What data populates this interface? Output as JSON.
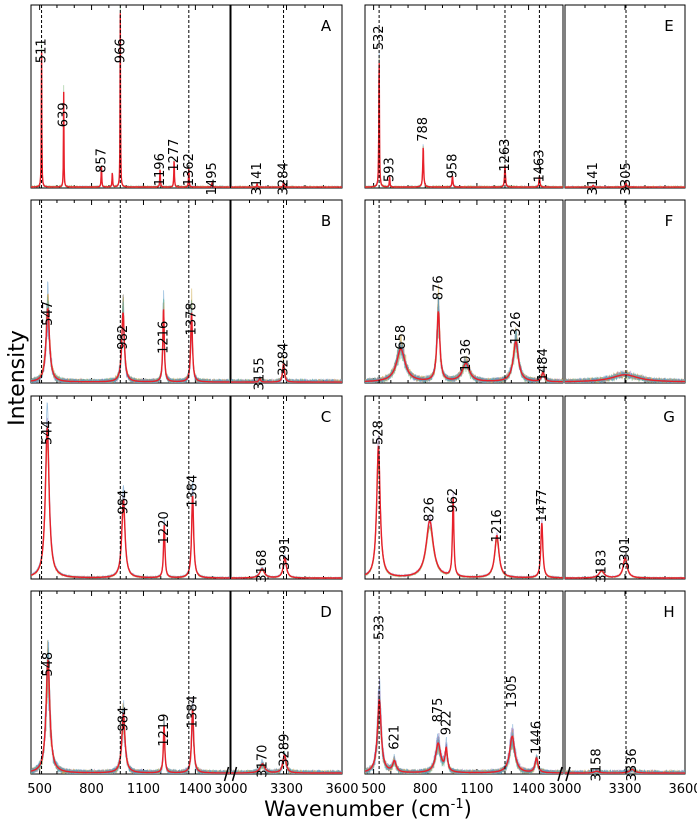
{
  "chart_data": {
    "type": "line",
    "description_free": true,
    "ylabel": "Intensity",
    "xlabel": "Wavenumber (cm",
    "xlabel_sup": "-1",
    "xlabel_end": ")",
    "x_ticks_low": [
      500,
      800,
      1100,
      1400
    ],
    "x_ticks_high": [
      3000,
      3300,
      3600
    ],
    "x_range_low": [
      450,
      1600
    ],
    "x_range_high": [
      3000,
      3600
    ],
    "dashed_lines_left": [
      511,
      966,
      1362,
      3284
    ],
    "dashed_lines_right": [
      532,
      1263,
      1463,
      3305
    ],
    "panels": [
      {
        "label": "A",
        "col": 0,
        "row": 0,
        "style": "sparse",
        "peaks": [
          {
            "x": 511,
            "h": 0.82,
            "w": 1.5,
            "label": "511",
            "ly": 0.25
          },
          {
            "x": 639,
            "h": 0.52,
            "w": 1.5,
            "label": "639",
            "ly": 0.6
          },
          {
            "x": 857,
            "h": 0.12,
            "w": 2,
            "label": "857",
            "ly": 0.85
          },
          {
            "x": 920,
            "h": 0.08,
            "w": 2,
            "label": "",
            "ly": 0
          },
          {
            "x": 966,
            "h": 0.95,
            "w": 1.5,
            "label": "966",
            "ly": 0.25
          },
          {
            "x": 1196,
            "h": 0.1,
            "w": 2,
            "label": "1196",
            "ly": 0.9
          },
          {
            "x": 1277,
            "h": 0.15,
            "w": 2,
            "label": "1277",
            "ly": 0.82
          },
          {
            "x": 1362,
            "h": 0.1,
            "w": 2,
            "label": "1362",
            "ly": 0.9
          },
          {
            "x": 1495,
            "h": 0.02,
            "w": 2,
            "label": "1495",
            "ly": 0.95
          },
          {
            "x": 3141,
            "h": 0.02,
            "w": 2,
            "label": "3141",
            "ly": 0.95
          },
          {
            "x": 3284,
            "h": 0.03,
            "w": 2,
            "label": "3284",
            "ly": 0.95
          }
        ]
      },
      {
        "label": "B",
        "col": 0,
        "row": 1,
        "style": "noisy",
        "peaks": [
          {
            "x": 547,
            "h": 0.4,
            "w": 12,
            "label": "547",
            "ly": 0.62
          },
          {
            "x": 982,
            "h": 0.38,
            "w": 9,
            "label": "982",
            "ly": 0.75
          },
          {
            "x": 1216,
            "h": 0.4,
            "w": 5,
            "label": "1216",
            "ly": 0.75
          },
          {
            "x": 1378,
            "h": 0.38,
            "w": 6,
            "label": "1378",
            "ly": 0.65
          },
          {
            "x": 3155,
            "h": 0.02,
            "w": 5,
            "label": "3155",
            "ly": 0.95
          },
          {
            "x": 3284,
            "h": 0.1,
            "w": 6,
            "label": "3284",
            "ly": 0.87
          }
        ]
      },
      {
        "label": "C",
        "col": 0,
        "row": 2,
        "style": "smooth",
        "peaks": [
          {
            "x": 544,
            "h": 0.82,
            "w": 13,
            "label": "544",
            "ly": 0.2
          },
          {
            "x": 984,
            "h": 0.43,
            "w": 11,
            "label": "984",
            "ly": 0.58
          },
          {
            "x": 1220,
            "h": 0.29,
            "w": 5,
            "label": "1220",
            "ly": 0.72
          },
          {
            "x": 1384,
            "h": 0.45,
            "w": 7,
            "label": "1384",
            "ly": 0.52
          },
          {
            "x": 3168,
            "h": 0.05,
            "w": 15,
            "label": "3168",
            "ly": 0.93
          },
          {
            "x": 3291,
            "h": 0.11,
            "w": 10,
            "label": "3291",
            "ly": 0.86
          }
        ]
      },
      {
        "label": "D",
        "col": 0,
        "row": 3,
        "style": "noisy",
        "peaks": [
          {
            "x": 548,
            "h": 0.62,
            "w": 13,
            "label": "548",
            "ly": 0.4
          },
          {
            "x": 984,
            "h": 0.32,
            "w": 11,
            "label": "984",
            "ly": 0.7
          },
          {
            "x": 1219,
            "h": 0.26,
            "w": 5,
            "label": "1219",
            "ly": 0.76
          },
          {
            "x": 1384,
            "h": 0.35,
            "w": 7,
            "label": "1384",
            "ly": 0.66
          },
          {
            "x": 3170,
            "h": 0.05,
            "w": 15,
            "label": "3170",
            "ly": 0.93
          },
          {
            "x": 3289,
            "h": 0.1,
            "w": 10,
            "label": "3289",
            "ly": 0.87
          }
        ]
      },
      {
        "label": "E",
        "col": 1,
        "row": 0,
        "style": "sparse",
        "peaks": [
          {
            "x": 532,
            "h": 0.72,
            "w": 2,
            "label": "532",
            "ly": 0.18
          },
          {
            "x": 593,
            "h": 0.06,
            "w": 2,
            "label": "593",
            "ly": 0.9
          },
          {
            "x": 788,
            "h": 0.22,
            "w": 3,
            "label": "788",
            "ly": 0.68
          },
          {
            "x": 958,
            "h": 0.06,
            "w": 3,
            "label": "958",
            "ly": 0.88
          },
          {
            "x": 1263,
            "h": 0.12,
            "w": 3,
            "label": "1263",
            "ly": 0.82
          },
          {
            "x": 1463,
            "h": 0.06,
            "w": 3,
            "label": "1463",
            "ly": 0.88
          },
          {
            "x": 3141,
            "h": 0.01,
            "w": 3,
            "label": "3141",
            "ly": 0.95
          },
          {
            "x": 3305,
            "h": 0.02,
            "w": 4,
            "label": "3305",
            "ly": 0.95
          }
        ]
      },
      {
        "label": "F",
        "col": 1,
        "row": 1,
        "style": "noisy",
        "peaks": [
          {
            "x": 658,
            "h": 0.18,
            "w": 30,
            "label": "658",
            "ly": 0.75
          },
          {
            "x": 876,
            "h": 0.38,
            "w": 10,
            "label": "876",
            "ly": 0.48
          },
          {
            "x": 1036,
            "h": 0.1,
            "w": 25,
            "label": "1036",
            "ly": 0.85
          },
          {
            "x": 1326,
            "h": 0.22,
            "w": 18,
            "label": "1326",
            "ly": 0.7
          },
          {
            "x": 1484,
            "h": 0.05,
            "w": 10,
            "label": "1484",
            "ly": 0.9
          },
          {
            "x": 3300,
            "h": 0.04,
            "w": 80,
            "label": "",
            "ly": 0
          }
        ]
      },
      {
        "label": "G",
        "col": 1,
        "row": 2,
        "style": "smooth",
        "peaks": [
          {
            "x": 528,
            "h": 0.72,
            "w": 12,
            "label": "528",
            "ly": 0.2
          },
          {
            "x": 826,
            "h": 0.31,
            "w": 25,
            "label": "826",
            "ly": 0.62
          },
          {
            "x": 962,
            "h": 0.43,
            "w": 5,
            "label": "962",
            "ly": 0.57
          },
          {
            "x": 1216,
            "h": 0.23,
            "w": 15,
            "label": "1216",
            "ly": 0.71
          },
          {
            "x": 1477,
            "h": 0.3,
            "w": 7,
            "label": "1477",
            "ly": 0.6
          },
          {
            "x": 3183,
            "h": 0.04,
            "w": 15,
            "label": "3183",
            "ly": 0.93
          },
          {
            "x": 3301,
            "h": 0.11,
            "w": 12,
            "label": "3301",
            "ly": 0.86
          }
        ]
      },
      {
        "label": "H",
        "col": 1,
        "row": 3,
        "style": "noisy",
        "peaks": [
          {
            "x": 533,
            "h": 0.4,
            "w": 13,
            "label": "533",
            "ly": 0.2
          },
          {
            "x": 621,
            "h": 0.06,
            "w": 12,
            "label": "621",
            "ly": 0.8
          },
          {
            "x": 875,
            "h": 0.16,
            "w": 18,
            "label": "875",
            "ly": 0.65
          },
          {
            "x": 922,
            "h": 0.12,
            "w": 8,
            "label": "922",
            "ly": 0.72
          },
          {
            "x": 1305,
            "h": 0.2,
            "w": 18,
            "label": "1305",
            "ly": 0.55
          },
          {
            "x": 1446,
            "h": 0.08,
            "w": 10,
            "label": "1446",
            "ly": 0.8
          },
          {
            "x": 3158,
            "h": 0.01,
            "w": 15,
            "label": "3158",
            "ly": 0.95
          },
          {
            "x": 3336,
            "h": 0.02,
            "w": 15,
            "label": "3336",
            "ly": 0.95
          }
        ]
      }
    ]
  },
  "colors": {
    "mean_line": "#e8202a",
    "spread_palette": [
      "#4f8fc6",
      "#6fb06a",
      "#c9a33a",
      "#a07ac0",
      "#e39a4e",
      "#5bb5b0"
    ],
    "axis": "#000000",
    "dash": "#000000"
  }
}
